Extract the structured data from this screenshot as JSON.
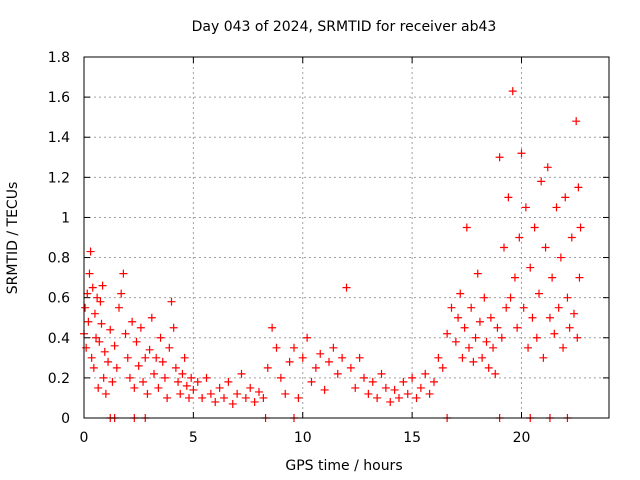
{
  "chart_data": {
    "type": "scatter",
    "title": "Day 043 of 2024, SRMTID for receiver ab43",
    "xlabel": "GPS time / hours",
    "ylabel": "SRMTID / TECUs",
    "xlim": [
      0,
      24
    ],
    "ylim": [
      0,
      1.8
    ],
    "x_ticks": [
      "0",
      "5",
      "10",
      "15",
      "20"
    ],
    "x_tick_values": [
      0,
      5,
      10,
      15,
      20
    ],
    "y_ticks": [
      "0",
      "0.2",
      "0.4",
      "0.6",
      "0.8",
      "1",
      "1.2",
      "1.4",
      "1.6",
      "1.8"
    ],
    "y_tick_values": [
      0,
      0.2,
      0.4,
      0.6,
      0.8,
      1.0,
      1.2,
      1.4,
      1.6,
      1.8
    ],
    "grid": true,
    "marker": "+",
    "color": "#ff0000",
    "series": [
      {
        "name": "SRMTID",
        "points": [
          [
            0.0,
            0.42
          ],
          [
            0.05,
            0.55
          ],
          [
            0.1,
            0.35
          ],
          [
            0.15,
            0.62
          ],
          [
            0.2,
            0.48
          ],
          [
            0.25,
            0.72
          ],
          [
            0.3,
            0.83
          ],
          [
            0.35,
            0.3
          ],
          [
            0.4,
            0.65
          ],
          [
            0.45,
            0.25
          ],
          [
            0.5,
            0.52
          ],
          [
            0.55,
            0.4
          ],
          [
            0.6,
            0.6
          ],
          [
            0.65,
            0.15
          ],
          [
            0.7,
            0.38
          ],
          [
            0.75,
            0.58
          ],
          [
            0.8,
            0.47
          ],
          [
            0.85,
            0.66
          ],
          [
            0.9,
            0.2
          ],
          [
            0.95,
            0.33
          ],
          [
            1.0,
            0.12
          ],
          [
            1.1,
            0.28
          ],
          [
            1.2,
            0.44
          ],
          [
            1.3,
            0.18
          ],
          [
            1.4,
            0.36
          ],
          [
            1.5,
            0.25
          ],
          [
            1.6,
            0.55
          ],
          [
            1.7,
            0.62
          ],
          [
            1.8,
            0.72
          ],
          [
            1.9,
            0.42
          ],
          [
            2.0,
            0.3
          ],
          [
            2.1,
            0.2
          ],
          [
            2.2,
            0.48
          ],
          [
            2.3,
            0.15
          ],
          [
            2.4,
            0.38
          ],
          [
            2.5,
            0.26
          ],
          [
            2.6,
            0.45
          ],
          [
            2.7,
            0.18
          ],
          [
            2.8,
            0.3
          ],
          [
            2.9,
            0.12
          ],
          [
            3.0,
            0.34
          ],
          [
            3.1,
            0.5
          ],
          [
            3.2,
            0.22
          ],
          [
            3.3,
            0.3
          ],
          [
            3.4,
            0.15
          ],
          [
            3.5,
            0.4
          ],
          [
            3.6,
            0.28
          ],
          [
            3.7,
            0.2
          ],
          [
            3.8,
            0.1
          ],
          [
            3.9,
            0.35
          ],
          [
            4.0,
            0.58
          ],
          [
            4.1,
            0.45
          ],
          [
            4.2,
            0.25
          ],
          [
            4.3,
            0.18
          ],
          [
            4.4,
            0.12
          ],
          [
            4.5,
            0.22
          ],
          [
            4.6,
            0.3
          ],
          [
            4.7,
            0.16
          ],
          [
            4.8,
            0.1
          ],
          [
            4.9,
            0.2
          ],
          [
            5.0,
            0.14
          ],
          [
            5.2,
            0.18
          ],
          [
            5.4,
            0.1
          ],
          [
            5.6,
            0.2
          ],
          [
            5.8,
            0.12
          ],
          [
            6.0,
            0.08
          ],
          [
            6.2,
            0.15
          ],
          [
            6.4,
            0.1
          ],
          [
            6.6,
            0.18
          ],
          [
            6.8,
            0.07
          ],
          [
            7.0,
            0.12
          ],
          [
            7.2,
            0.22
          ],
          [
            7.4,
            0.1
          ],
          [
            7.6,
            0.15
          ],
          [
            7.8,
            0.08
          ],
          [
            8.0,
            0.13
          ],
          [
            8.2,
            0.1
          ],
          [
            8.4,
            0.25
          ],
          [
            8.6,
            0.45
          ],
          [
            8.8,
            0.35
          ],
          [
            9.0,
            0.2
          ],
          [
            9.2,
            0.12
          ],
          [
            9.4,
            0.28
          ],
          [
            9.6,
            0.35
          ],
          [
            9.8,
            0.1
          ],
          [
            10.0,
            0.3
          ],
          [
            10.2,
            0.4
          ],
          [
            10.4,
            0.18
          ],
          [
            10.6,
            0.25
          ],
          [
            10.8,
            0.32
          ],
          [
            11.0,
            0.14
          ],
          [
            11.2,
            0.28
          ],
          [
            11.4,
            0.35
          ],
          [
            11.6,
            0.22
          ],
          [
            11.8,
            0.3
          ],
          [
            12.0,
            0.65
          ],
          [
            12.2,
            0.25
          ],
          [
            12.4,
            0.15
          ],
          [
            12.6,
            0.3
          ],
          [
            12.8,
            0.2
          ],
          [
            13.0,
            0.12
          ],
          [
            13.2,
            0.18
          ],
          [
            13.4,
            0.1
          ],
          [
            13.6,
            0.22
          ],
          [
            13.8,
            0.15
          ],
          [
            14.0,
            0.08
          ],
          [
            14.2,
            0.14
          ],
          [
            14.4,
            0.1
          ],
          [
            14.6,
            0.18
          ],
          [
            14.8,
            0.12
          ],
          [
            15.0,
            0.2
          ],
          [
            15.2,
            0.1
          ],
          [
            15.4,
            0.15
          ],
          [
            15.6,
            0.22
          ],
          [
            15.8,
            0.12
          ],
          [
            16.0,
            0.18
          ],
          [
            16.2,
            0.3
          ],
          [
            16.4,
            0.25
          ],
          [
            16.6,
            0.42
          ],
          [
            16.8,
            0.55
          ],
          [
            17.0,
            0.38
          ],
          [
            17.1,
            0.5
          ],
          [
            17.2,
            0.62
          ],
          [
            17.3,
            0.3
          ],
          [
            17.4,
            0.45
          ],
          [
            17.5,
            0.95
          ],
          [
            17.6,
            0.35
          ],
          [
            17.7,
            0.55
          ],
          [
            17.8,
            0.28
          ],
          [
            17.9,
            0.4
          ],
          [
            18.0,
            0.72
          ],
          [
            18.1,
            0.48
          ],
          [
            18.2,
            0.3
          ],
          [
            18.3,
            0.6
          ],
          [
            18.4,
            0.38
          ],
          [
            18.5,
            0.25
          ],
          [
            18.6,
            0.5
          ],
          [
            18.7,
            0.35
          ],
          [
            18.8,
            0.22
          ],
          [
            18.9,
            0.45
          ],
          [
            19.0,
            1.3
          ],
          [
            19.1,
            0.4
          ],
          [
            19.2,
            0.85
          ],
          [
            19.3,
            0.55
          ],
          [
            19.4,
            1.1
          ],
          [
            19.5,
            0.6
          ],
          [
            19.6,
            1.63
          ],
          [
            19.7,
            0.7
          ],
          [
            19.8,
            0.45
          ],
          [
            19.9,
            0.9
          ],
          [
            20.0,
            1.32
          ],
          [
            20.1,
            0.55
          ],
          [
            20.2,
            1.05
          ],
          [
            20.3,
            0.35
          ],
          [
            20.4,
            0.75
          ],
          [
            20.5,
            0.5
          ],
          [
            20.6,
            0.95
          ],
          [
            20.7,
            0.4
          ],
          [
            20.8,
            0.62
          ],
          [
            20.9,
            1.18
          ],
          [
            21.0,
            0.3
          ],
          [
            21.1,
            0.85
          ],
          [
            21.2,
            1.25
          ],
          [
            21.3,
            0.5
          ],
          [
            21.4,
            0.7
          ],
          [
            21.5,
            0.42
          ],
          [
            21.6,
            1.05
          ],
          [
            21.7,
            0.55
          ],
          [
            21.8,
            0.8
          ],
          [
            21.9,
            0.35
          ],
          [
            22.0,
            1.1
          ],
          [
            22.1,
            0.6
          ],
          [
            22.2,
            0.45
          ],
          [
            22.3,
            0.9
          ],
          [
            22.4,
            0.52
          ],
          [
            22.5,
            1.48
          ],
          [
            22.55,
            0.4
          ],
          [
            22.6,
            1.15
          ],
          [
            22.65,
            0.7
          ],
          [
            22.7,
            0.95
          ],
          [
            1.2,
            0.0
          ],
          [
            1.4,
            0.0
          ],
          [
            2.3,
            0.0
          ],
          [
            2.8,
            0.0
          ],
          [
            8.3,
            0.0
          ],
          [
            9.6,
            0.0
          ],
          [
            16.6,
            0.0
          ],
          [
            19.0,
            0.0
          ],
          [
            20.4,
            0.0
          ],
          [
            21.3,
            0.0
          ],
          [
            22.1,
            0.0
          ]
        ]
      }
    ]
  }
}
